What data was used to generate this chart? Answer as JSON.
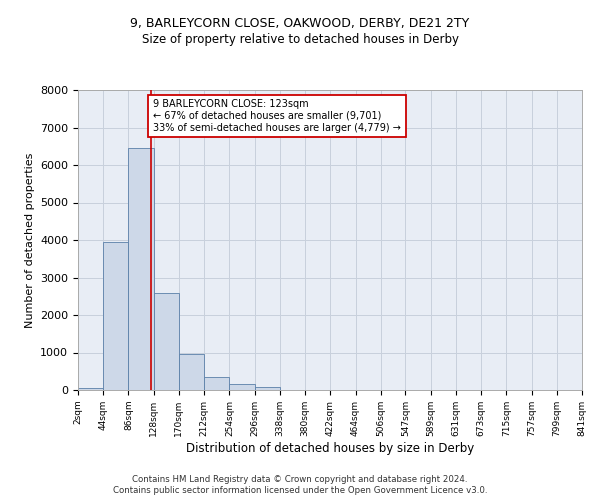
{
  "title_line1": "9, BARLEYCORN CLOSE, OAKWOOD, DERBY, DE21 2TY",
  "title_line2": "Size of property relative to detached houses in Derby",
  "xlabel": "Distribution of detached houses by size in Derby",
  "ylabel": "Number of detached properties",
  "bar_edges": [
    2,
    44,
    86,
    128,
    170,
    212,
    254,
    296,
    338,
    380,
    422,
    464,
    506,
    547,
    589,
    631,
    673,
    715,
    757,
    799,
    841
  ],
  "bar_heights": [
    50,
    3950,
    6450,
    2600,
    950,
    350,
    150,
    75,
    0,
    0,
    0,
    0,
    0,
    0,
    0,
    0,
    0,
    0,
    0,
    0
  ],
  "bar_color": "#cdd8e8",
  "bar_edgecolor": "#5a7fa8",
  "grid_color": "#c8d0dc",
  "background_color": "#e8edf5",
  "property_size": 123,
  "vline_color": "#cc0000",
  "ylim": [
    0,
    8000
  ],
  "yticks": [
    0,
    1000,
    2000,
    3000,
    4000,
    5000,
    6000,
    7000,
    8000
  ],
  "annotation_box_text": "9 BARLEYCORN CLOSE: 123sqm\n← 67% of detached houses are smaller (9,701)\n33% of semi-detached houses are larger (4,779) →",
  "footer_line1": "Contains HM Land Registry data © Crown copyright and database right 2024.",
  "footer_line2": "Contains public sector information licensed under the Open Government Licence v3.0."
}
